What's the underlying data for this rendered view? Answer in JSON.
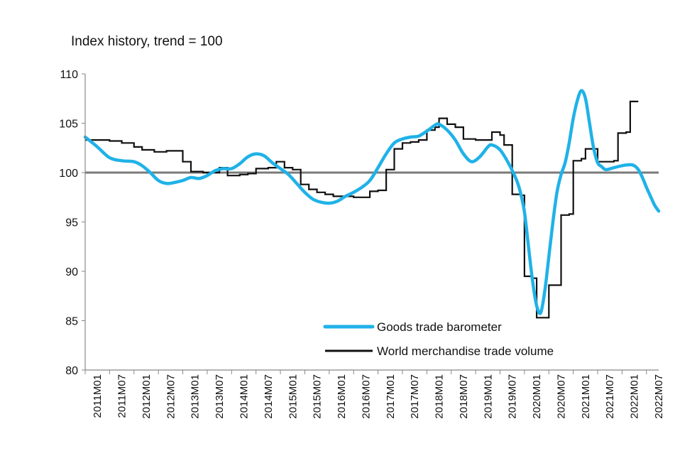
{
  "chart_data": {
    "type": "line",
    "title": "Index history, trend = 100",
    "xlabel": "",
    "ylabel": "",
    "ylim": [
      80,
      110
    ],
    "yticks": [
      80,
      85,
      90,
      95,
      100,
      105,
      110
    ],
    "x_range_months": [
      0,
      141
    ],
    "x_tick_labels": [
      "2011M01",
      "2011M07",
      "2012M01",
      "2012M07",
      "2013M01",
      "2013M07",
      "2014M01",
      "2014M07",
      "2015M01",
      "2015M07",
      "2016M01",
      "2016M07",
      "2017M01",
      "2017M07",
      "2018M01",
      "2018M07",
      "2019M01",
      "2019M07",
      "2020M01",
      "2020M07",
      "2021M01",
      "2021M07",
      "2022M01",
      "2022M07"
    ],
    "reference_line": 100,
    "legend_position": "bottom-right",
    "colors": {
      "barometer": "#1fb2e8",
      "volume": "#111111",
      "reference": "#7a7a7a",
      "axis": "#888888"
    },
    "series": [
      {
        "name": "Goods trade barometer",
        "style": "smooth",
        "points": [
          [
            0,
            103.6
          ],
          [
            3,
            102.6
          ],
          [
            6,
            101.5
          ],
          [
            9,
            101.2
          ],
          [
            12,
            101.1
          ],
          [
            14,
            100.7
          ],
          [
            16,
            100.0
          ],
          [
            18,
            99.2
          ],
          [
            20,
            98.9
          ],
          [
            22,
            99.0
          ],
          [
            24,
            99.2
          ],
          [
            26,
            99.5
          ],
          [
            28,
            99.4
          ],
          [
            30,
            99.7
          ],
          [
            32,
            100.2
          ],
          [
            34,
            100.4
          ],
          [
            36,
            100.4
          ],
          [
            38,
            100.9
          ],
          [
            40,
            101.6
          ],
          [
            42,
            101.9
          ],
          [
            44,
            101.7
          ],
          [
            46,
            101.0
          ],
          [
            48,
            100.4
          ],
          [
            50,
            99.8
          ],
          [
            52,
            98.9
          ],
          [
            54,
            98.0
          ],
          [
            56,
            97.3
          ],
          [
            58,
            97.0
          ],
          [
            60,
            96.9
          ],
          [
            62,
            97.1
          ],
          [
            64,
            97.6
          ],
          [
            66,
            98.0
          ],
          [
            68,
            98.5
          ],
          [
            70,
            99.2
          ],
          [
            72,
            100.5
          ],
          [
            74,
            101.9
          ],
          [
            76,
            103.0
          ],
          [
            78,
            103.4
          ],
          [
            80,
            103.6
          ],
          [
            82,
            103.7
          ],
          [
            84,
            104.2
          ],
          [
            86,
            104.8
          ],
          [
            87,
            104.9
          ],
          [
            89,
            104.3
          ],
          [
            91,
            103.3
          ],
          [
            93,
            101.9
          ],
          [
            95,
            101.1
          ],
          [
            97,
            101.6
          ],
          [
            99,
            102.6
          ],
          [
            100,
            102.8
          ],
          [
            102,
            102.3
          ],
          [
            104,
            101.0
          ],
          [
            106,
            99.3
          ],
          [
            107,
            98.0
          ],
          [
            108,
            96.0
          ],
          [
            109,
            92.5
          ],
          [
            110,
            89.0
          ],
          [
            111,
            86.5
          ],
          [
            112,
            85.8
          ],
          [
            113,
            88.0
          ],
          [
            114,
            91.5
          ],
          [
            115,
            95.0
          ],
          [
            116,
            98.0
          ],
          [
            117,
            99.8
          ],
          [
            118,
            101.0
          ],
          [
            119,
            103.0
          ],
          [
            120,
            105.5
          ],
          [
            121,
            107.3
          ],
          [
            122,
            108.3
          ],
          [
            123,
            107.5
          ],
          [
            124,
            105.0
          ],
          [
            125,
            102.5
          ],
          [
            126,
            101.0
          ],
          [
            127,
            100.6
          ],
          [
            128,
            100.3
          ],
          [
            130,
            100.5
          ],
          [
            132,
            100.7
          ],
          [
            134,
            100.8
          ],
          [
            135,
            100.7
          ],
          [
            136,
            100.3
          ],
          [
            137,
            99.5
          ],
          [
            138,
            98.5
          ],
          [
            139,
            97.6
          ],
          [
            140,
            96.7
          ],
          [
            141,
            96.1
          ]
        ]
      },
      {
        "name": "World merchandise trade volume",
        "style": "step",
        "points": [
          [
            0,
            103.3
          ],
          [
            3,
            103.3
          ],
          [
            6,
            103.2
          ],
          [
            9,
            103.0
          ],
          [
            12,
            102.6
          ],
          [
            14,
            102.3
          ],
          [
            17,
            102.1
          ],
          [
            20,
            102.2
          ],
          [
            22,
            102.2
          ],
          [
            24,
            101.1
          ],
          [
            26,
            100.1
          ],
          [
            29,
            100.0
          ],
          [
            31,
            100.0
          ],
          [
            33,
            100.5
          ],
          [
            35,
            99.7
          ],
          [
            38,
            99.8
          ],
          [
            40,
            99.9
          ],
          [
            42,
            100.4
          ],
          [
            45,
            100.5
          ],
          [
            47,
            101.1
          ],
          [
            49,
            100.5
          ],
          [
            51,
            100.3
          ],
          [
            53,
            98.8
          ],
          [
            55,
            98.3
          ],
          [
            57,
            98.0
          ],
          [
            59,
            97.8
          ],
          [
            61,
            97.6
          ],
          [
            64,
            97.6
          ],
          [
            66,
            97.5
          ],
          [
            68,
            97.5
          ],
          [
            70,
            98.1
          ],
          [
            72,
            98.2
          ],
          [
            74,
            100.3
          ],
          [
            76,
            102.4
          ],
          [
            78,
            103.0
          ],
          [
            80,
            103.1
          ],
          [
            82,
            103.3
          ],
          [
            84,
            104.3
          ],
          [
            86,
            104.6
          ],
          [
            87,
            105.5
          ],
          [
            89,
            104.9
          ],
          [
            91,
            104.6
          ],
          [
            93,
            103.4
          ],
          [
            96,
            103.3
          ],
          [
            98,
            103.3
          ],
          [
            100,
            104.1
          ],
          [
            102,
            103.8
          ],
          [
            103,
            102.8
          ],
          [
            105,
            97.8
          ],
          [
            107,
            97.7
          ],
          [
            108,
            89.5
          ],
          [
            110,
            89.3
          ],
          [
            111,
            85.3
          ],
          [
            113,
            85.3
          ],
          [
            114,
            88.6
          ],
          [
            116,
            88.6
          ],
          [
            117,
            95.7
          ],
          [
            119,
            95.8
          ],
          [
            120,
            101.2
          ],
          [
            122,
            101.4
          ],
          [
            123,
            102.4
          ],
          [
            125,
            102.4
          ],
          [
            126,
            101.1
          ],
          [
            128,
            101.1
          ],
          [
            130,
            101.2
          ],
          [
            131,
            104.0
          ],
          [
            133,
            104.1
          ],
          [
            134,
            107.2
          ],
          [
            136,
            107.2
          ]
        ]
      }
    ]
  }
}
